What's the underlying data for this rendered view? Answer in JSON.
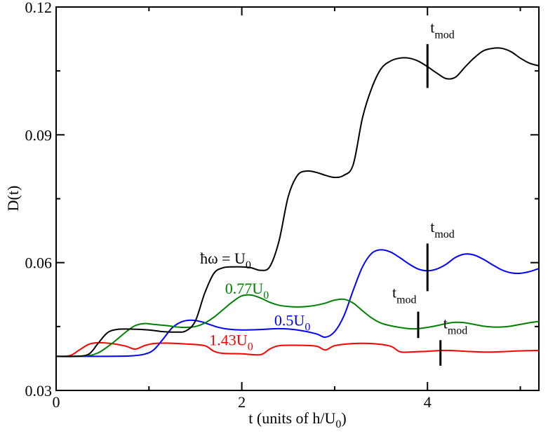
{
  "chart_data": {
    "type": "line",
    "title": "",
    "xlabel": "t (units of h/U",
    "xlabel_sub": "0",
    "xlabel_end": ")",
    "ylabel": "D(t)",
    "xlim": [
      0,
      5.2
    ],
    "ylim": [
      0.03,
      0.12
    ],
    "x_ticks": [
      0,
      2,
      4
    ],
    "x_tick_labels": [
      "0",
      "2",
      "4"
    ],
    "y_ticks": [
      0.03,
      0.06,
      0.09,
      0.12
    ],
    "y_tick_labels": [
      "0.03",
      "0.06",
      "0.09",
      "0.12"
    ],
    "grid": false,
    "series": [
      {
        "name": "ħω = U0",
        "color": "#000000",
        "x": [
          0,
          0.2,
          0.35,
          0.45,
          0.55,
          0.65,
          0.8,
          1.0,
          1.15,
          1.3,
          1.4,
          1.5,
          1.6,
          1.7,
          1.8,
          1.9,
          2.0,
          2.1,
          2.2,
          2.3,
          2.4,
          2.5,
          2.6,
          2.7,
          2.8,
          2.9,
          3.0,
          3.1,
          3.2,
          3.3,
          3.4,
          3.5,
          3.6,
          3.7,
          3.8,
          3.9,
          4.0,
          4.1,
          4.2,
          4.3,
          4.4,
          4.5,
          4.6,
          4.7,
          4.8,
          4.9,
          5.0,
          5.1,
          5.2
        ],
        "y": [
          0.038,
          0.038,
          0.0385,
          0.041,
          0.0435,
          0.0443,
          0.0444,
          0.0442,
          0.0438,
          0.0437,
          0.044,
          0.0463,
          0.0528,
          0.0575,
          0.0588,
          0.059,
          0.059,
          0.0588,
          0.0582,
          0.059,
          0.065,
          0.0755,
          0.0805,
          0.0815,
          0.0812,
          0.0805,
          0.08,
          0.0805,
          0.083,
          0.094,
          0.101,
          0.1055,
          0.1073,
          0.108,
          0.108,
          0.1073,
          0.106,
          0.1045,
          0.1032,
          0.1035,
          0.1058,
          0.108,
          0.1097,
          0.1103,
          0.1103,
          0.1095,
          0.108,
          0.1068,
          0.1062
        ]
      },
      {
        "name": "0.77U0",
        "color": "#008000",
        "x": [
          0,
          0.3,
          0.45,
          0.6,
          0.75,
          0.85,
          0.95,
          1.05,
          1.2,
          1.3,
          1.4,
          1.5,
          1.6,
          1.7,
          1.8,
          1.9,
          2.0,
          2.1,
          2.2,
          2.3,
          2.4,
          2.5,
          2.6,
          2.7,
          2.8,
          2.9,
          3.0,
          3.1,
          3.2,
          3.3,
          3.4,
          3.5,
          3.6,
          3.7,
          3.8,
          3.9,
          4.0,
          4.1,
          4.2,
          4.3,
          4.4,
          4.5,
          4.6,
          4.7,
          4.8,
          4.9,
          5.0,
          5.1,
          5.2
        ],
        "y": [
          0.038,
          0.0381,
          0.0388,
          0.041,
          0.0437,
          0.0452,
          0.0457,
          0.0455,
          0.0452,
          0.0449,
          0.0448,
          0.045,
          0.0458,
          0.0472,
          0.049,
          0.0508,
          0.0522,
          0.0524,
          0.0517,
          0.0507,
          0.05,
          0.0497,
          0.0496,
          0.0497,
          0.05,
          0.0505,
          0.0512,
          0.0514,
          0.0505,
          0.0487,
          0.047,
          0.0458,
          0.0452,
          0.0448,
          0.0445,
          0.0445,
          0.0448,
          0.0452,
          0.0457,
          0.046,
          0.0459,
          0.0455,
          0.0451,
          0.0449,
          0.0449,
          0.0451,
          0.0455,
          0.0459,
          0.0462
        ]
      },
      {
        "name": "0.5U0",
        "color": "#0000ff",
        "x": [
          0,
          0.5,
          0.8,
          0.95,
          1.05,
          1.15,
          1.25,
          1.35,
          1.45,
          1.55,
          1.65,
          1.75,
          1.85,
          2.0,
          2.2,
          2.4,
          2.6,
          2.8,
          2.9,
          3.0,
          3.1,
          3.2,
          3.3,
          3.4,
          3.5,
          3.6,
          3.7,
          3.8,
          3.9,
          4.0,
          4.1,
          4.2,
          4.3,
          4.4,
          4.5,
          4.6,
          4.7,
          4.8,
          4.9,
          5.0,
          5.1,
          5.2
        ],
        "y": [
          0.038,
          0.038,
          0.0381,
          0.0385,
          0.0395,
          0.042,
          0.0447,
          0.0461,
          0.0465,
          0.0462,
          0.0455,
          0.0448,
          0.0444,
          0.0442,
          0.0443,
          0.0445,
          0.0442,
          0.0433,
          0.0425,
          0.0438,
          0.0475,
          0.0535,
          0.059,
          0.0622,
          0.063,
          0.0625,
          0.0612,
          0.0597,
          0.0585,
          0.0581,
          0.0585,
          0.0596,
          0.0612,
          0.062,
          0.0618,
          0.0608,
          0.0595,
          0.0583,
          0.0576,
          0.0575,
          0.0579,
          0.0586
        ]
      },
      {
        "name": "1.43U0",
        "color": "#ff0000",
        "x": [
          0,
          0.15,
          0.25,
          0.35,
          0.45,
          0.6,
          0.75,
          0.85,
          0.95,
          1.05,
          1.2,
          1.4,
          1.6,
          1.7,
          1.8,
          2.0,
          2.2,
          2.3,
          2.4,
          2.6,
          2.8,
          2.9,
          3.0,
          3.2,
          3.4,
          3.6,
          3.7,
          3.8,
          4.0,
          4.2,
          4.4,
          4.6,
          4.8,
          5.0,
          5.2
        ],
        "y": [
          0.038,
          0.0382,
          0.0395,
          0.0408,
          0.0412,
          0.041,
          0.0404,
          0.0397,
          0.0405,
          0.041,
          0.0411,
          0.0409,
          0.0405,
          0.0392,
          0.0387,
          0.0386,
          0.0384,
          0.0397,
          0.0405,
          0.0406,
          0.0404,
          0.0395,
          0.0405,
          0.041,
          0.041,
          0.0404,
          0.0391,
          0.039,
          0.0392,
          0.0394,
          0.0392,
          0.039,
          0.0391,
          0.0393,
          0.0394
        ]
      }
    ],
    "annotations": [
      {
        "id": "label-black",
        "text": "ħω = U",
        "sub": "0",
        "color": "#000000",
        "x": 1.55,
        "y": 0.0598
      },
      {
        "id": "label-green",
        "text": "0.77U",
        "sub": "0",
        "color": "#008000",
        "x": 1.82,
        "y": 0.0527
      },
      {
        "id": "label-blue",
        "text": "0.5U",
        "sub": "0",
        "color": "#0000ff",
        "x": 2.35,
        "y": 0.0452
      },
      {
        "id": "label-red",
        "text": "1.43U",
        "sub": "0",
        "color": "#ff0000",
        "x": 1.65,
        "y": 0.0406
      }
    ],
    "markers": [
      {
        "id": "tmod-black",
        "label": "t",
        "sub": "mod",
        "x": 4.0,
        "y_from": 0.101,
        "y_to": 0.1113,
        "label_x": 4.03,
        "label_y": 0.114
      },
      {
        "id": "tmod-blue",
        "label": "t",
        "sub": "mod",
        "x": 4.0,
        "y_from": 0.0533,
        "y_to": 0.0645,
        "label_x": 4.03,
        "label_y": 0.0672
      },
      {
        "id": "tmod-green",
        "label": "t",
        "sub": "mod",
        "x": 3.9,
        "y_from": 0.0423,
        "y_to": 0.0485,
        "label_x": 3.62,
        "label_y": 0.0518
      },
      {
        "id": "tmod-red",
        "label": "t",
        "sub": "mod",
        "x": 4.14,
        "y_from": 0.0358,
        "y_to": 0.0418,
        "label_x": 4.17,
        "label_y": 0.0446
      }
    ]
  }
}
